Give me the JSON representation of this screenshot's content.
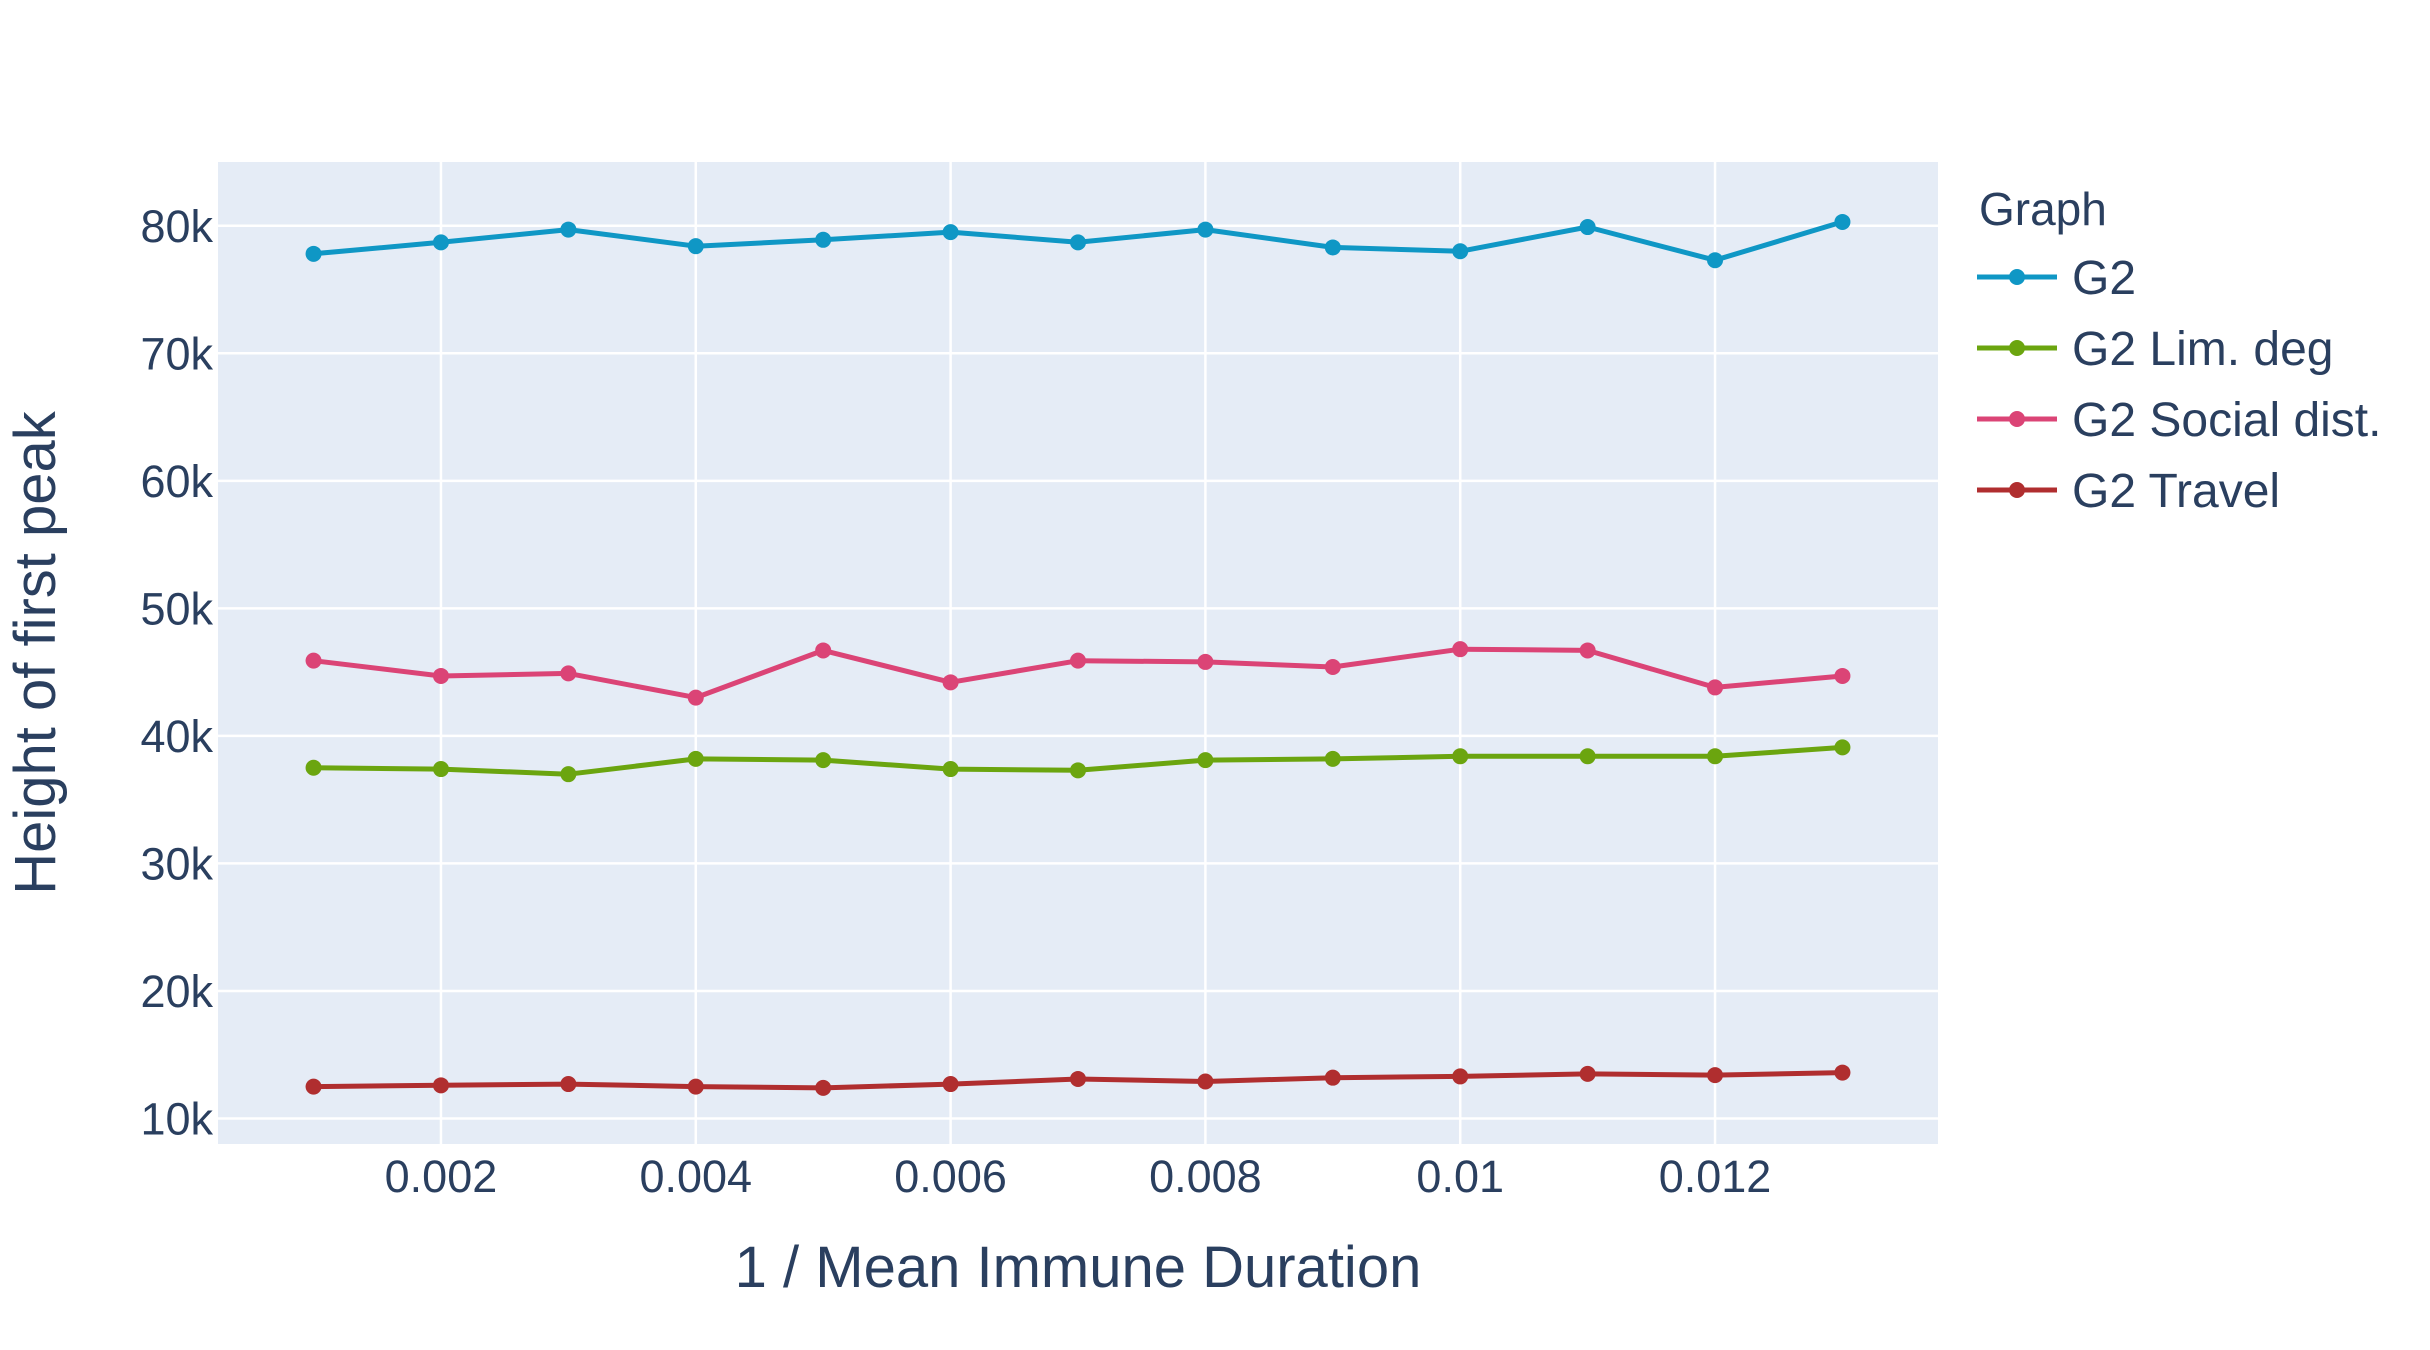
{
  "chart_data": {
    "type": "line",
    "title": "",
    "xlabel": "1 / Mean Immune Duration",
    "ylabel": "Height of first peak",
    "xlim": [
      0.00025,
      0.01375
    ],
    "ylim": [
      8000,
      85000
    ],
    "grid": true,
    "x_ticks": [
      0.002,
      0.004,
      0.006,
      0.008,
      0.01,
      0.012
    ],
    "x_tick_labels": [
      "0.002",
      "0.004",
      "0.006",
      "0.008",
      "0.01",
      "0.012"
    ],
    "y_ticks": [
      10000,
      20000,
      30000,
      40000,
      50000,
      60000,
      70000,
      80000
    ],
    "y_tick_labels": [
      "10k",
      "20k",
      "30k",
      "40k",
      "50k",
      "60k",
      "70k",
      "80k"
    ],
    "legend_title": "Graph",
    "legend_position": "right",
    "x": [
      0.001,
      0.002,
      0.003,
      0.004,
      0.005,
      0.006,
      0.007,
      0.008,
      0.009,
      0.01,
      0.011,
      0.012,
      0.013
    ],
    "series": [
      {
        "name": "G2",
        "color": "#0f97c5",
        "values": [
          77800,
          78700,
          79700,
          78400,
          78900,
          79500,
          78700,
          79700,
          78300,
          78000,
          79900,
          77300,
          80300
        ]
      },
      {
        "name": "G2 Lim. deg",
        "color": "#6ba50f",
        "values": [
          37500,
          37400,
          37000,
          38200,
          38100,
          37400,
          37300,
          38100,
          38200,
          38400,
          38400,
          38400,
          39100
        ]
      },
      {
        "name": "G2 Social dist.",
        "color": "#db4476",
        "values": [
          45900,
          44700,
          44900,
          43000,
          46700,
          44200,
          45900,
          45800,
          45400,
          46800,
          46700,
          43800,
          44700
        ]
      },
      {
        "name": "G2 Travel",
        "color": "#b02e2f",
        "values": [
          12500,
          12600,
          12700,
          12500,
          12400,
          12700,
          13100,
          12900,
          13200,
          13300,
          13500,
          13400,
          13600
        ]
      }
    ]
  }
}
